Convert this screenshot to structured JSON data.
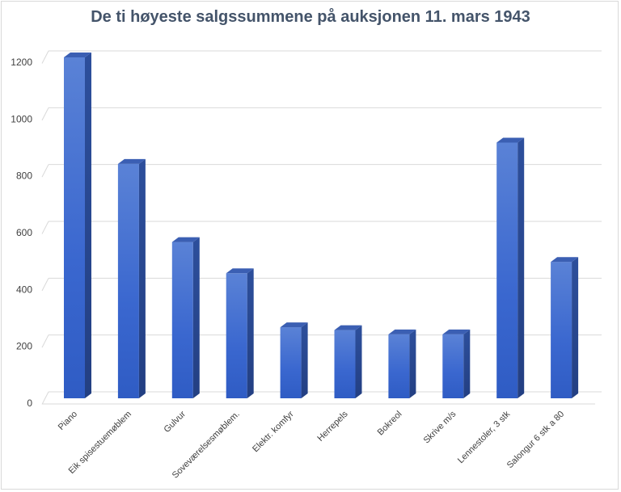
{
  "chart_data": {
    "type": "bar",
    "title": "De ti høyeste salgssummene på auksjonen 11. mars 1943",
    "categories": [
      "Piano",
      "Eik spisestuemøblem",
      "Gulvur",
      "Soveværelsesmøblem.",
      "Elektr. komfyr",
      "Herrepels",
      "Bokreol",
      "Skrive m/s",
      "Lennestoler, 3 stk",
      "Salongur 6 stk a 80"
    ],
    "values": [
      1200,
      825,
      550,
      440,
      250,
      240,
      225,
      225,
      900,
      480
    ],
    "ylim": [
      0,
      1200
    ],
    "yticks": [
      0,
      200,
      400,
      600,
      800,
      1000,
      1200
    ],
    "grid": true,
    "bar_color": "#3366cc",
    "xlabel": "",
    "ylabel": ""
  }
}
